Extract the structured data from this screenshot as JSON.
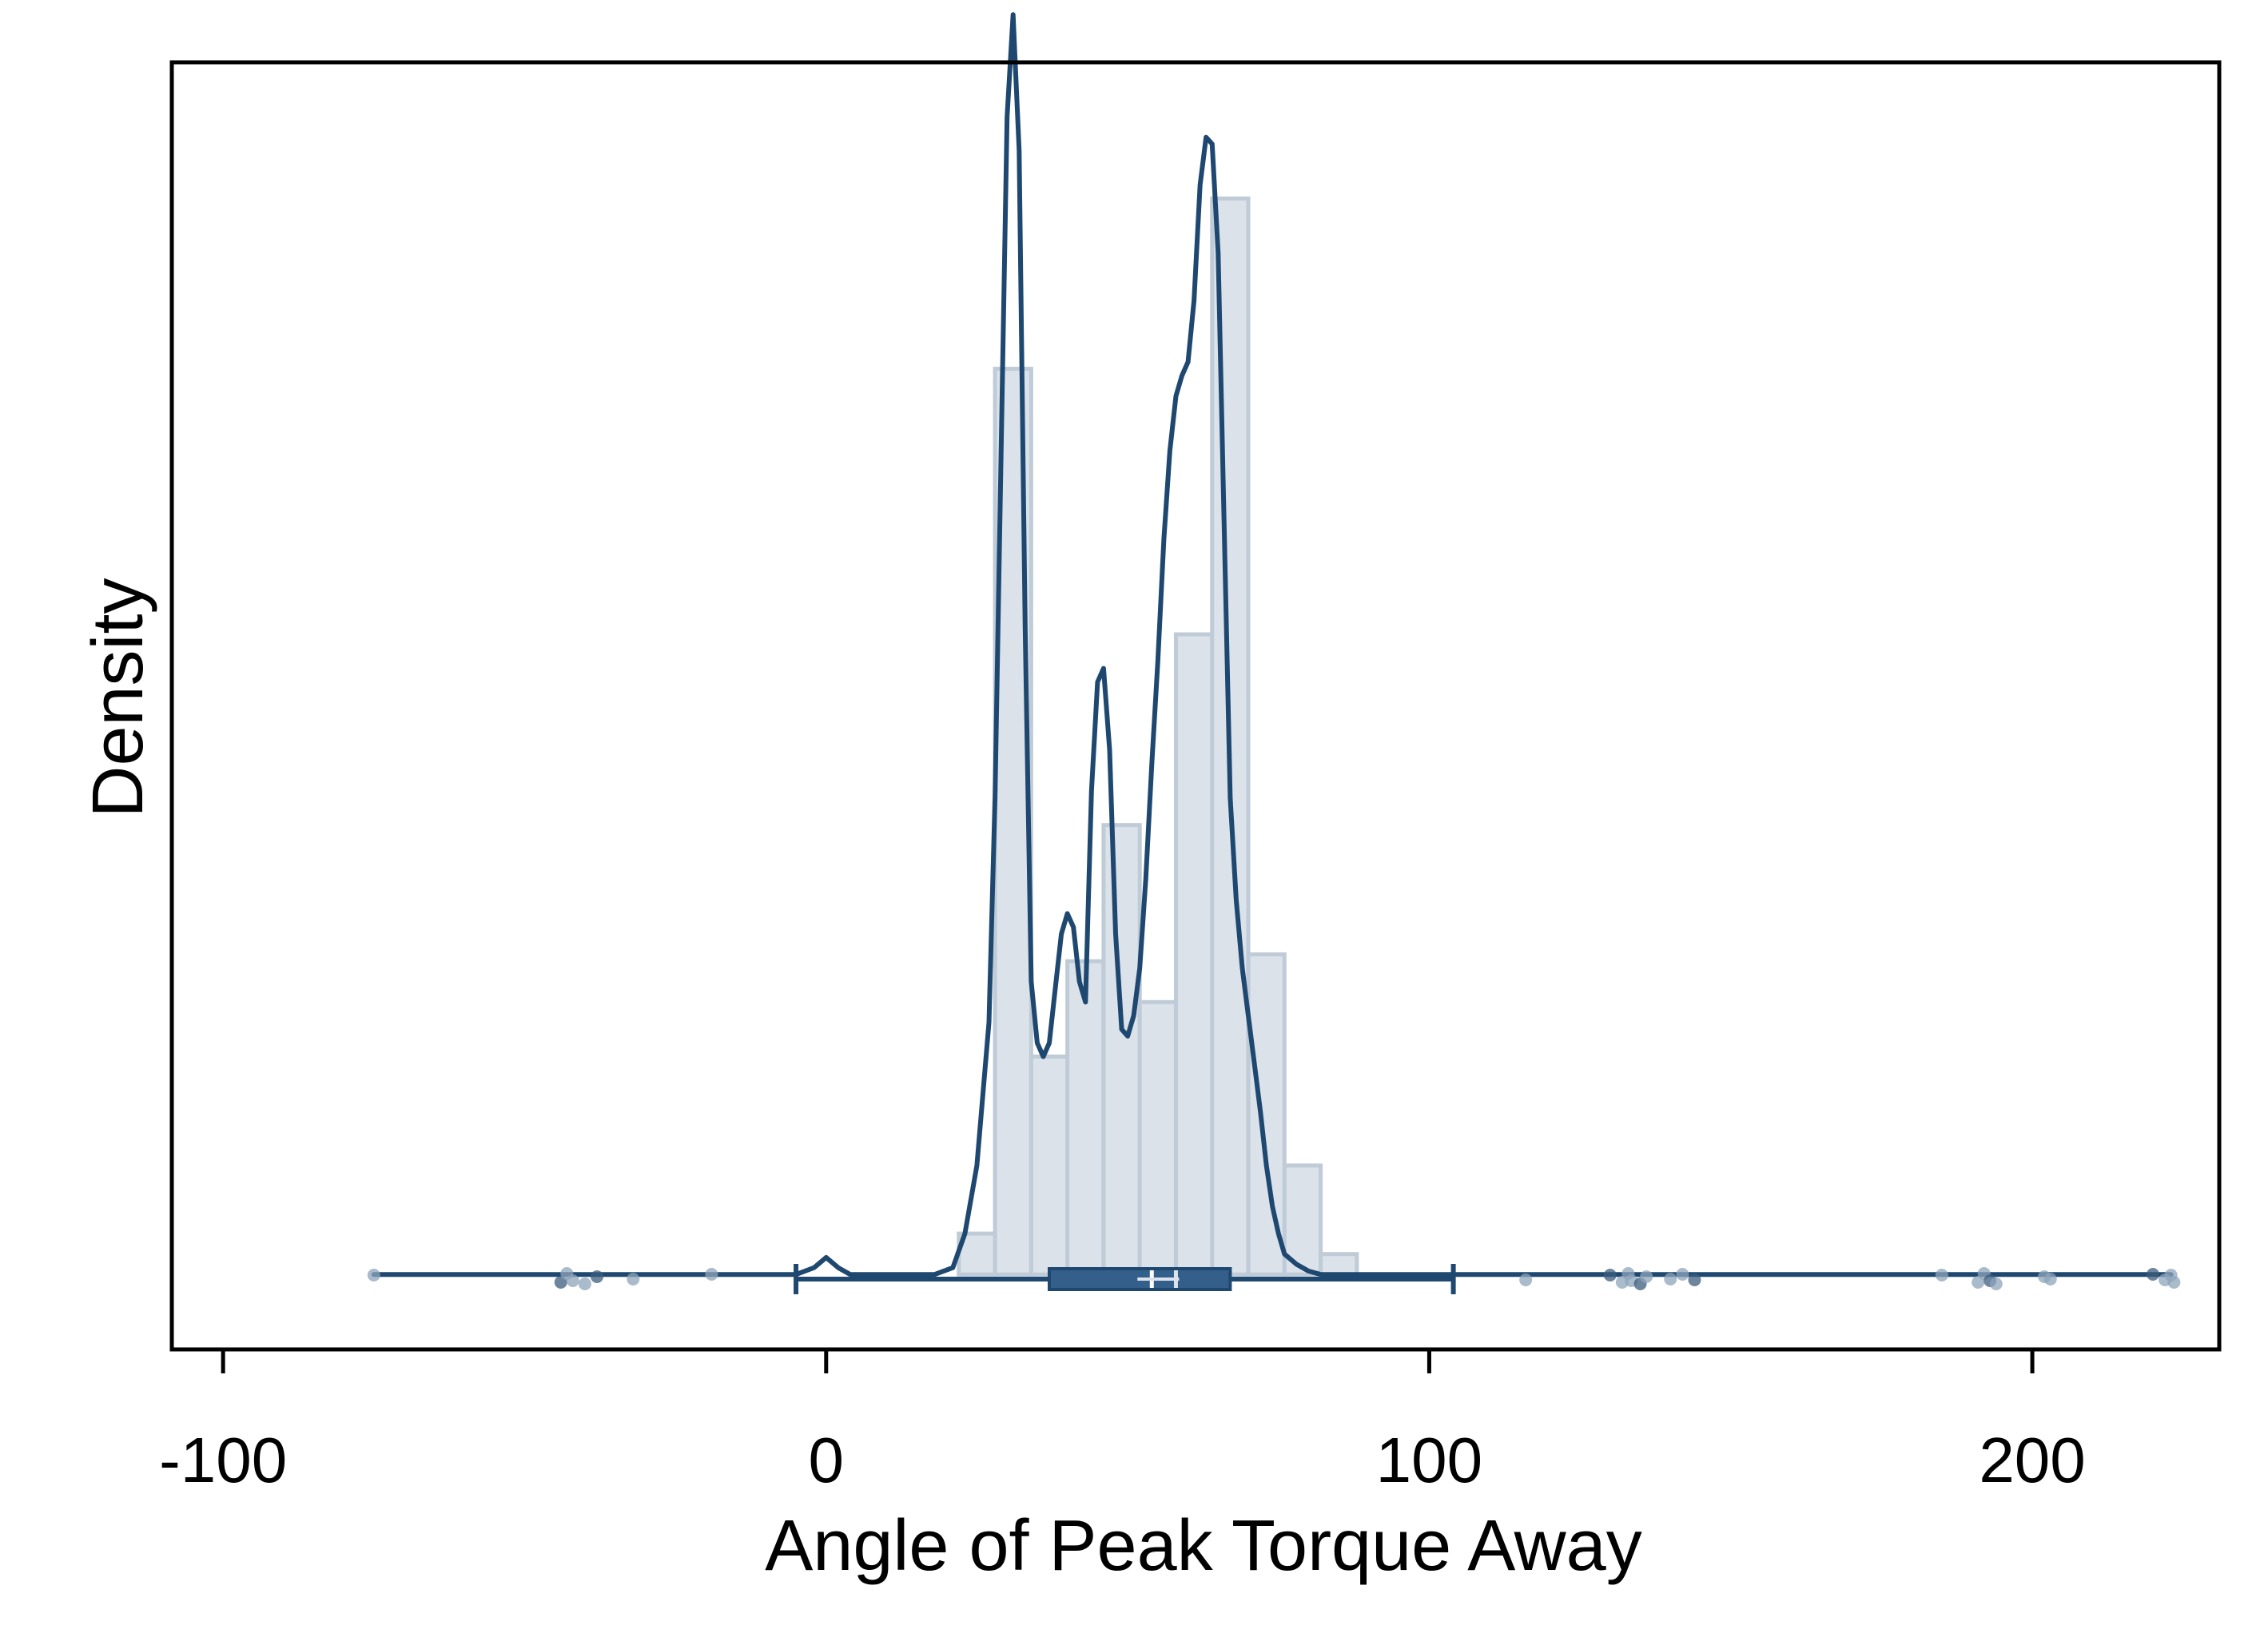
{
  "chart_data": {
    "type": "histogram",
    "xlabel": "Angle of Peak Torque Away",
    "ylabel": "Density",
    "xlim": [
      -108.5,
      231
    ],
    "ylim": [
      -0.0011,
      0.0178
    ],
    "xticks": [
      -100,
      0,
      100,
      200
    ],
    "yticks_shown": false,
    "grid": false,
    "legend": "none",
    "colors": {
      "bar_fill": "#dbe2ea",
      "bar_stroke": "#bfcbd7",
      "curve": "#1f4870",
      "box": "#335f8a",
      "points": "#8ea4bb",
      "points_dark": "#3c5d7d"
    },
    "histogram": {
      "bin_width": 6,
      "bins": [
        {
          "x0": 22,
          "density": 0.0006
        },
        {
          "x0": 28,
          "density": 0.0133
        },
        {
          "x0": 34,
          "density": 0.0032
        },
        {
          "x0": 40,
          "density": 0.0046
        },
        {
          "x0": 46,
          "density": 0.0066
        },
        {
          "x0": 52,
          "density": 0.004
        },
        {
          "x0": 58,
          "density": 0.0094
        },
        {
          "x0": 64,
          "density": 0.0158
        },
        {
          "x0": 70,
          "density": 0.0047
        },
        {
          "x0": 76,
          "density": 0.0016
        },
        {
          "x0": 82,
          "density": 0.0003
        }
      ]
    },
    "density_curve": {
      "x": [
        -75,
        -20,
        -5,
        -2,
        0,
        2,
        4,
        6,
        18,
        21,
        23,
        25,
        27,
        28,
        29,
        30,
        31,
        32,
        33,
        34,
        35,
        36,
        37,
        38,
        39,
        40,
        41,
        42,
        43,
        44,
        45,
        46,
        47,
        48,
        49,
        50,
        51,
        52,
        53,
        54,
        55,
        56,
        57,
        58,
        59,
        60,
        61,
        62,
        63,
        64,
        65,
        66,
        67,
        68,
        69,
        70,
        71,
        72,
        73,
        74,
        75,
        76,
        78,
        80,
        82,
        84,
        86,
        88,
        90,
        95,
        100,
        150,
        223
      ],
      "y": [
        0,
        0,
        0,
        0.0001,
        0.00025,
        0.0001,
        0,
        0,
        0,
        0.0001,
        0.0006,
        0.0016,
        0.0037,
        0.007,
        0.012,
        0.017,
        0.0185,
        0.0165,
        0.0095,
        0.0043,
        0.0034,
        0.0032,
        0.0034,
        0.0042,
        0.005,
        0.0053,
        0.0051,
        0.0043,
        0.004,
        0.0071,
        0.0087,
        0.0089,
        0.0077,
        0.005,
        0.0036,
        0.0035,
        0.0038,
        0.0045,
        0.0058,
        0.0075,
        0.009,
        0.0108,
        0.0121,
        0.0129,
        0.0132,
        0.0134,
        0.0143,
        0.016,
        0.0167,
        0.0166,
        0.015,
        0.011,
        0.007,
        0.0055,
        0.0045,
        0.0038,
        0.0031,
        0.0024,
        0.0016,
        0.001,
        0.0006,
        0.0003,
        0.00015,
        5e-05,
        0,
        0,
        0,
        0,
        0,
        0,
        0,
        0,
        0
      ]
    },
    "boxplot": {
      "whisker_low": -5,
      "q1": 37,
      "median": 54,
      "mean": 58,
      "q3": 67,
      "whisker_high": 104
    },
    "outliers_x": [
      -75,
      -44,
      -43,
      -42,
      -40,
      -38,
      -32,
      -19,
      116,
      130,
      132,
      133,
      133.5,
      135,
      136,
      140,
      142,
      144,
      185,
      191,
      192,
      193,
      194,
      202,
      203,
      220,
      222,
      223,
      223.5
    ]
  }
}
